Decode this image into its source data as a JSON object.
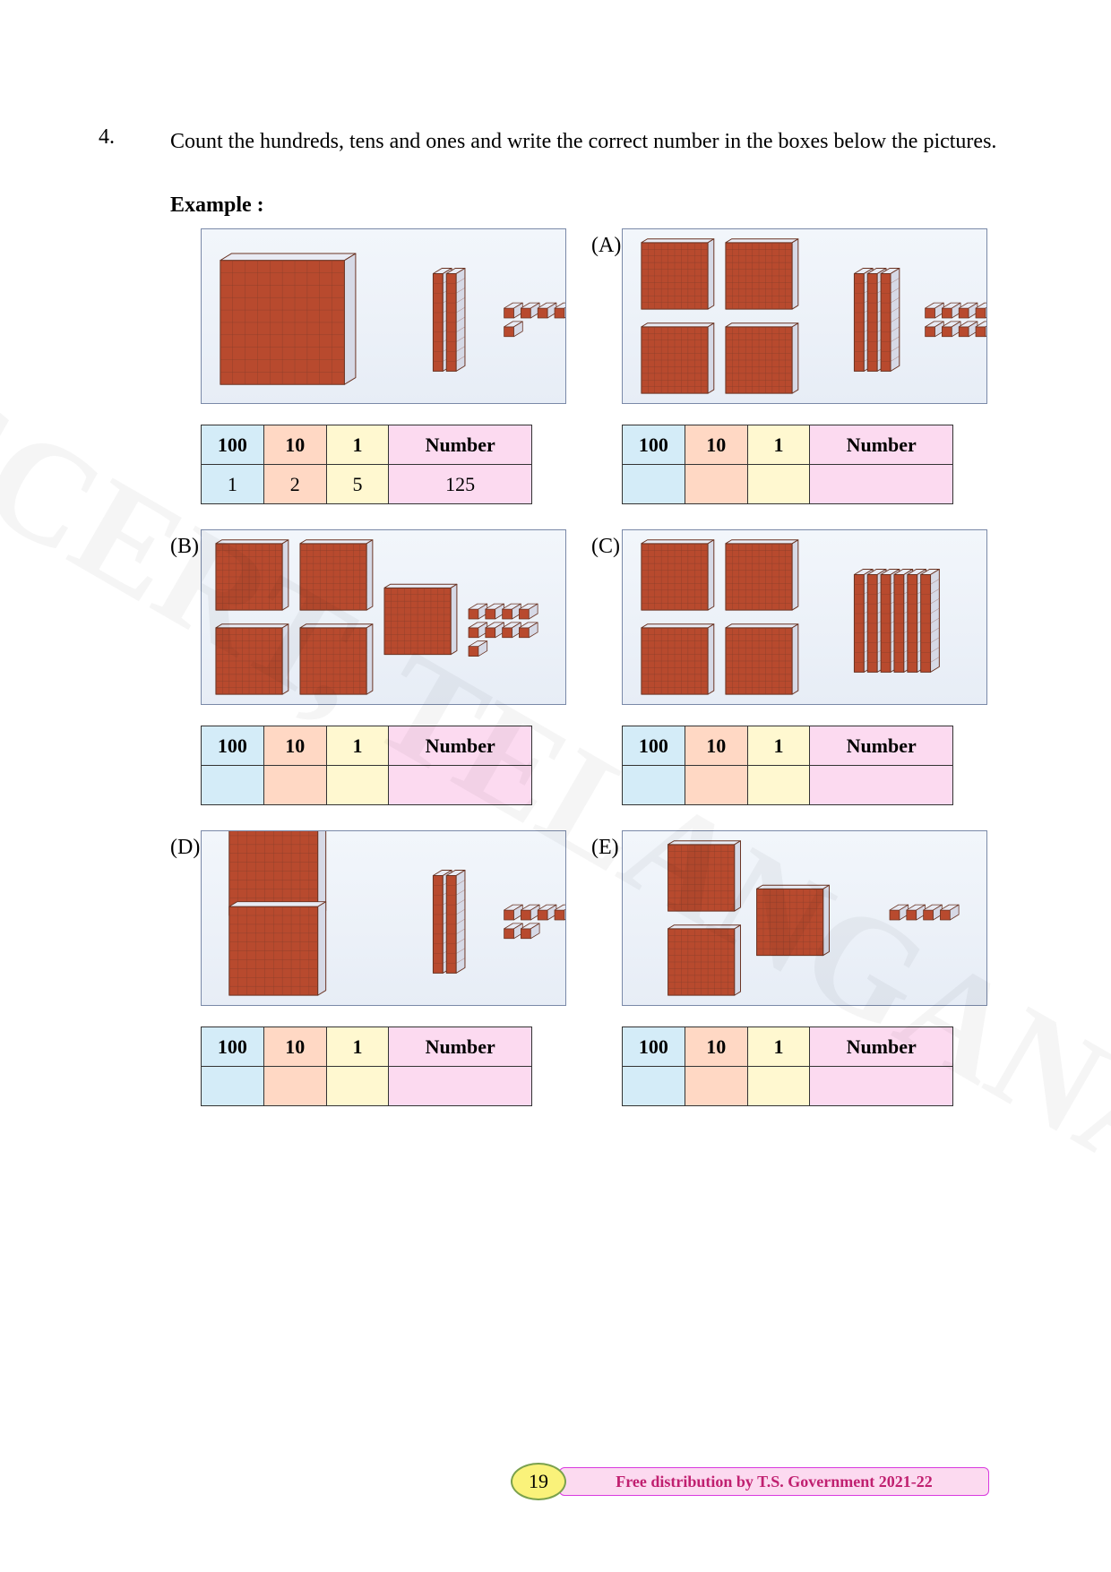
{
  "question": {
    "number": "4.",
    "text": "Count the hundreds, tens and ones and write the correct number in the boxes below the pictures.",
    "example_label": "Example :"
  },
  "table_headers": {
    "h100": "100",
    "h10": "10",
    "h1": "1",
    "hnum": "Number"
  },
  "problems": {
    "example": {
      "letter": "",
      "blocks": {
        "hundreds": 1,
        "tens": 2,
        "ones": 5
      },
      "answers": {
        "c100": "1",
        "c10": "2",
        "c1": "5",
        "num": "125"
      }
    },
    "A": {
      "letter": "(A)",
      "blocks": {
        "hundreds": 4,
        "tens": 3,
        "ones": 8
      },
      "answers": {
        "c100": "",
        "c10": "",
        "c1": "",
        "num": ""
      }
    },
    "B": {
      "letter": "(B)",
      "blocks": {
        "hundreds": 5,
        "tens": 0,
        "ones": 9
      },
      "answers": {
        "c100": "",
        "c10": "",
        "c1": "",
        "num": ""
      }
    },
    "C": {
      "letter": "(C)",
      "blocks": {
        "hundreds": 4,
        "tens": 6,
        "ones": 0
      },
      "answers": {
        "c100": "",
        "c10": "",
        "c1": "",
        "num": ""
      }
    },
    "D": {
      "letter": "(D)",
      "blocks": {
        "hundreds": 2,
        "tens": 2,
        "ones": 6
      },
      "answers": {
        "c100": "",
        "c10": "",
        "c1": "",
        "num": ""
      }
    },
    "E": {
      "letter": "(E)",
      "blocks": {
        "hundreds": 3,
        "tens": 0,
        "ones": 4
      },
      "answers": {
        "c100": "",
        "c10": "",
        "c1": "",
        "num": ""
      }
    }
  },
  "style": {
    "block_fill": "#b84a2e",
    "block_side": "#d6d9e6",
    "block_top": "#e8ebf4",
    "block_stroke": "#6a3322",
    "grid_stroke": "#8a3f2c"
  },
  "footer": {
    "page_number": "19",
    "text": "Free distribution by T.S. Government 2021-22"
  },
  "watermark": "SCERT, TELANGANA"
}
